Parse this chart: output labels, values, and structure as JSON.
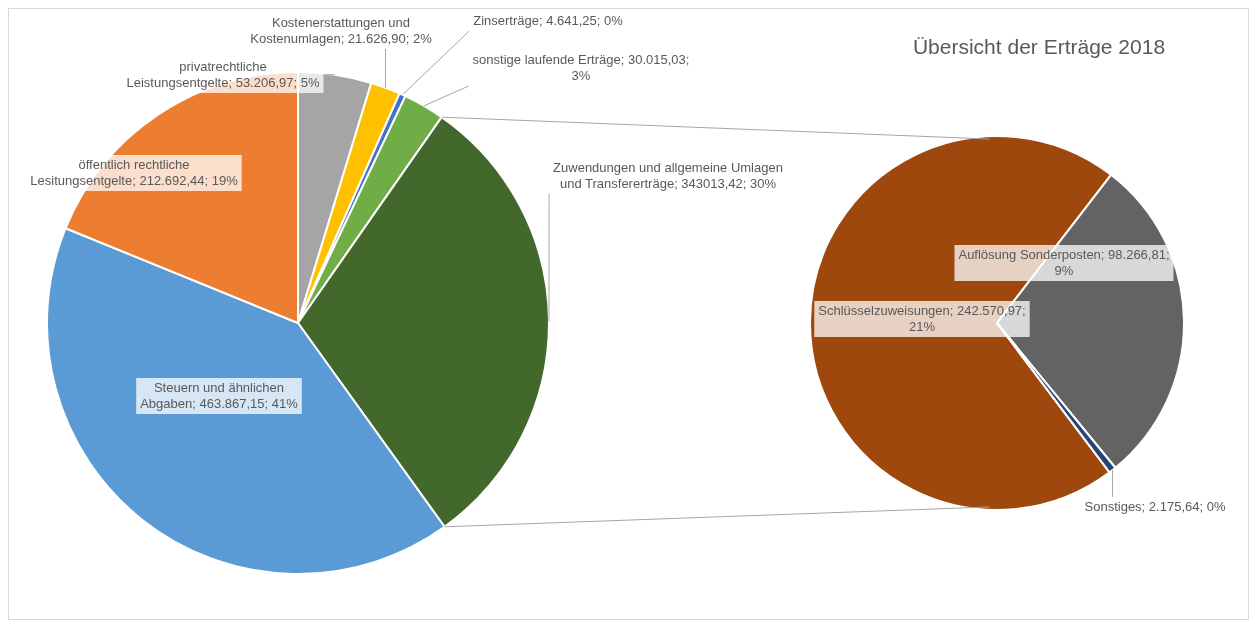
{
  "chart_data": [
    {
      "type": "pie",
      "title": "Übersicht der Erträge 2018",
      "categories": [
        "privatrechtliche Leistungsentgelte",
        "Kostenerstattungen und Kostenumlagen",
        "Zinserträge",
        "sonstige laufende Erträge",
        "Zuwendungen und allgemeine Umlagen und Transfererträge ",
        "Steuern und ähnlichen Abgaben",
        "öffentlich rechtliche Lesitungsentgelte"
      ],
      "values": [
        53206.97,
        21626.9,
        4641.25,
        30015.03,
        343013.42,
        463867.15,
        212692.44
      ],
      "value_labels": [
        "53.206,97; 5%",
        "21.626,90; 2%",
        "4.641,25; 0%",
        "30.015,03; 3%",
        "343013,42; 30%",
        "463.867,15; 41%",
        "212.692,44; 19%"
      ],
      "colors": [
        "#a5a5a5",
        "#ffc000",
        "#4472c4",
        "#70ad47",
        "#43682b",
        "#5b9bd5",
        "#ed7d31"
      ]
    },
    {
      "type": "pie",
      "categories": [
        "Schlüsselzuweisungen",
        "Auflösung Sonderposten",
        "Sonstiges"
      ],
      "values": [
        242570.97,
        98266.81,
        2175.64
      ],
      "value_labels": [
        "242.570,97; 21%",
        "98.266,81; 9%",
        "2.175,64; 0%"
      ],
      "colors": [
        "#9e480e",
        "#636363",
        "#264478"
      ]
    }
  ]
}
